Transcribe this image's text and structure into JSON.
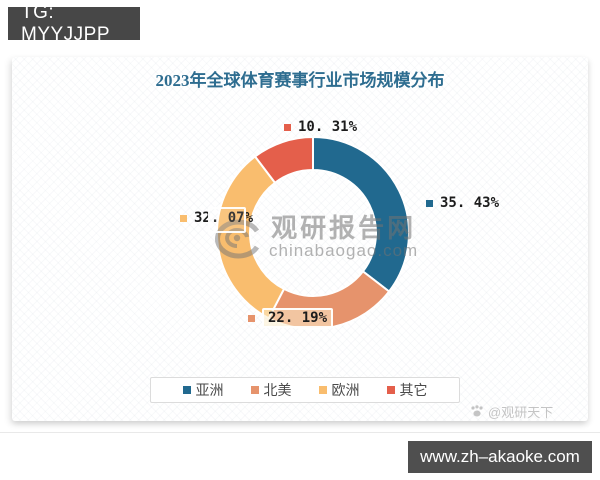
{
  "page": {
    "tg_label": "TG: MYYJJPP",
    "url_label": "www.zh–akaoke.com"
  },
  "chart_data": {
    "type": "pie",
    "donut": true,
    "title": "2023年全球体育赛事行业市场规模分布",
    "start_angle_deg": -90,
    "direction": "clockwise",
    "legend_position": "bottom",
    "segments": [
      {
        "label": "亚洲",
        "value": 35.43,
        "display": "35. 43%",
        "color": "#21698f"
      },
      {
        "label": "北美",
        "value": 22.19,
        "display": "22. 19%",
        "color": "#e6936c"
      },
      {
        "label": "欧洲",
        "value": 32.07,
        "display": "32. 07%",
        "color": "#f9bd6e"
      },
      {
        "label": "其它",
        "value": 10.31,
        "display": "10. 31%",
        "color": "#e45f4b"
      }
    ]
  },
  "watermark": {
    "center_name": "观研报告网",
    "center_domain": "chinabaogao.com",
    "corner": "@观研天下"
  }
}
